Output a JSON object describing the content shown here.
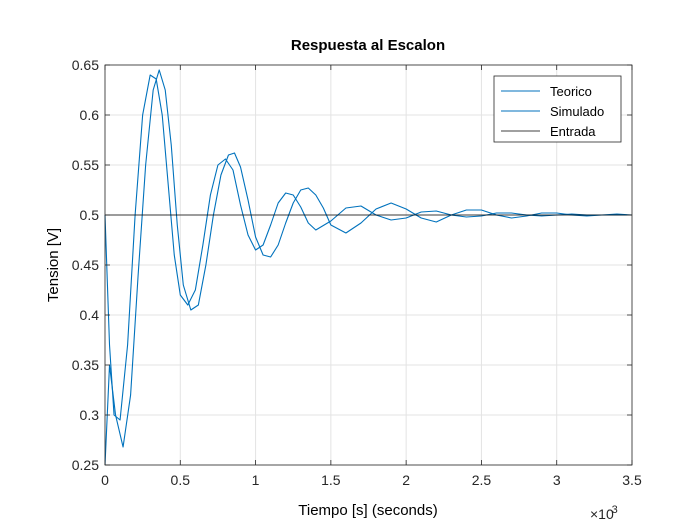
{
  "chart_data": {
    "type": "line",
    "title": "Respuesta al Escalon",
    "xlabel": "Tiempo [s] (seconds)",
    "ylabel": "Tension [V]",
    "x_exponent_label": "×10",
    "x_exponent_power": "-3",
    "xlim": [
      0,
      3.5
    ],
    "ylim": [
      0.25,
      0.65
    ],
    "xticks": [
      "0",
      "0.5",
      "1",
      "1.5",
      "2",
      "2.5",
      "3",
      "3.5"
    ],
    "yticks": [
      "0.25",
      "0.3",
      "0.35",
      "0.4",
      "0.45",
      "0.5",
      "0.55",
      "0.6",
      "0.65"
    ],
    "grid": true,
    "legend_position": "top-right",
    "series": [
      {
        "name": "Teorico",
        "color": "#0072bd",
        "x": [
          0,
          0.03,
          0.06,
          0.1,
          0.15,
          0.2,
          0.25,
          0.3,
          0.34,
          0.38,
          0.42,
          0.46,
          0.5,
          0.55,
          0.6,
          0.65,
          0.7,
          0.75,
          0.8,
          0.85,
          0.9,
          0.95,
          1.0,
          1.05,
          1.1,
          1.15,
          1.2,
          1.25,
          1.3,
          1.35,
          1.4,
          1.5,
          1.6,
          1.7,
          1.8,
          1.9,
          2.0,
          2.1,
          2.2,
          2.3,
          2.4,
          2.5,
          2.6,
          2.7,
          2.8,
          2.9,
          3.0,
          3.1,
          3.2,
          3.3,
          3.4,
          3.5
        ],
        "y": [
          0.5,
          0.37,
          0.3,
          0.295,
          0.37,
          0.5,
          0.6,
          0.64,
          0.636,
          0.6,
          0.53,
          0.46,
          0.42,
          0.41,
          0.425,
          0.47,
          0.52,
          0.55,
          0.556,
          0.545,
          0.51,
          0.48,
          0.465,
          0.47,
          0.49,
          0.512,
          0.522,
          0.52,
          0.508,
          0.492,
          0.485,
          0.494,
          0.507,
          0.509,
          0.5,
          0.495,
          0.497,
          0.503,
          0.504,
          0.5,
          0.498,
          0.499,
          0.502,
          0.502,
          0.5,
          0.499,
          0.5,
          0.501,
          0.5,
          0.5,
          0.5,
          0.5
        ]
      },
      {
        "name": "Simulado",
        "color": "#0072bd",
        "x": [
          0,
          0.03,
          0.07,
          0.12,
          0.17,
          0.22,
          0.27,
          0.32,
          0.36,
          0.4,
          0.44,
          0.48,
          0.52,
          0.57,
          0.62,
          0.67,
          0.72,
          0.77,
          0.82,
          0.86,
          0.9,
          0.95,
          1.0,
          1.05,
          1.1,
          1.15,
          1.2,
          1.25,
          1.3,
          1.35,
          1.4,
          1.45,
          1.5,
          1.6,
          1.7,
          1.8,
          1.9,
          2.0,
          2.1,
          2.2,
          2.3,
          2.4,
          2.5,
          2.6,
          2.7,
          2.8,
          2.9,
          3.0,
          3.1,
          3.2,
          3.3,
          3.4,
          3.5
        ],
        "y": [
          0.25,
          0.35,
          0.3,
          0.268,
          0.32,
          0.44,
          0.55,
          0.625,
          0.645,
          0.625,
          0.57,
          0.49,
          0.43,
          0.405,
          0.41,
          0.45,
          0.5,
          0.54,
          0.56,
          0.562,
          0.548,
          0.515,
          0.478,
          0.46,
          0.458,
          0.47,
          0.492,
          0.512,
          0.525,
          0.527,
          0.52,
          0.507,
          0.49,
          0.482,
          0.492,
          0.506,
          0.512,
          0.506,
          0.497,
          0.493,
          0.5,
          0.505,
          0.505,
          0.5,
          0.497,
          0.499,
          0.502,
          0.502,
          0.5,
          0.499,
          0.5,
          0.501,
          0.5
        ]
      },
      {
        "name": "Entrada",
        "color": "#000000",
        "x": [
          0,
          3.5
        ],
        "y": [
          0.5,
          0.5
        ]
      }
    ]
  }
}
